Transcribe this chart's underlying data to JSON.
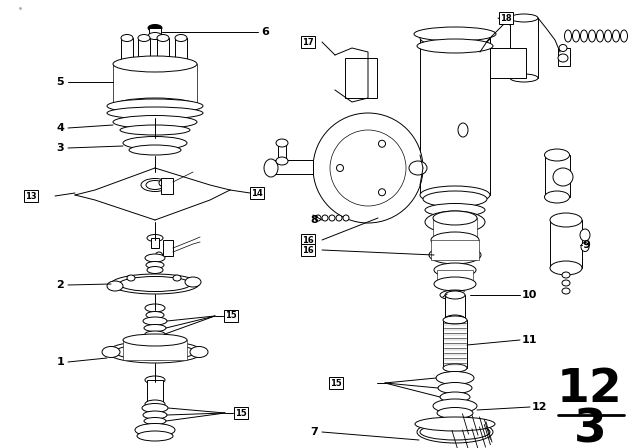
{
  "bg_color": "#ffffff",
  "line_color": "#000000",
  "fig_width": 6.4,
  "fig_height": 4.48,
  "dpi": 100,
  "fraction_top": "12",
  "fraction_bottom": "3",
  "lw": 0.7
}
